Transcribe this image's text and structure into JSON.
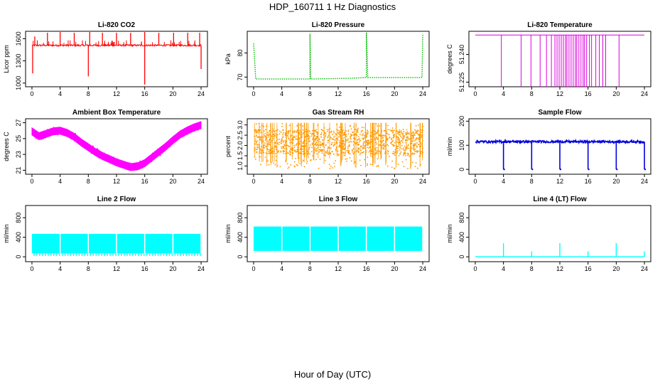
{
  "page": {
    "title": "HDP_160711  1 Hz Diagnostics",
    "xlabel": "Hour of Day (UTC)"
  },
  "chart_data": [
    {
      "type": "line",
      "title": "Li-820 CO2",
      "ylabel": "Licor ppm",
      "color": "#ff0000",
      "xlim": [
        0,
        24
      ],
      "xticks": [
        0,
        4,
        8,
        12,
        16,
        20,
        24
      ],
      "ylim": [
        950,
        1700
      ],
      "yticks": [
        1000,
        1300,
        1600
      ],
      "baseline": 1510,
      "noise": 12,
      "spikes_up": [
        [
          0.4,
          1630
        ],
        [
          2.2,
          1680
        ],
        [
          4.0,
          1690
        ],
        [
          6.0,
          1680
        ],
        [
          8.2,
          1690
        ],
        [
          10.0,
          1680
        ],
        [
          12.0,
          1680
        ],
        [
          14.0,
          1680
        ],
        [
          16.0,
          1690
        ],
        [
          18.0,
          1680
        ],
        [
          20.1,
          1680
        ],
        [
          22.1,
          1680
        ],
        [
          23.8,
          1680
        ]
      ],
      "spikes_down": [
        [
          0.1,
          1130
        ],
        [
          8.0,
          1090
        ],
        [
          16.0,
          980
        ],
        [
          24.0,
          1190
        ]
      ]
    },
    {
      "type": "line",
      "title": "Li-820 Pressure",
      "ylabel": "kPa",
      "color": "#00bb00",
      "dotted": true,
      "xlim": [
        0,
        24
      ],
      "xticks": [
        0,
        4,
        8,
        12,
        16,
        20,
        24
      ],
      "ylim": [
        66,
        89
      ],
      "yticks": [
        70,
        80
      ],
      "segments": [
        [
          0.0,
          84
        ],
        [
          0.3,
          69.2
        ],
        [
          8.0,
          69.2
        ],
        [
          8.0,
          88
        ],
        [
          8.1,
          69.2
        ],
        [
          13.5,
          69.5
        ],
        [
          16.0,
          69.8
        ],
        [
          16.0,
          88.5
        ],
        [
          16.2,
          69.8
        ],
        [
          23.9,
          69.8
        ],
        [
          24.0,
          88
        ]
      ]
    },
    {
      "type": "line",
      "title": "Li-820 Temperature",
      "ylabel": "degrees C",
      "color": "#dd00dd",
      "xlim": [
        0,
        24
      ],
      "xticks": [
        0,
        4,
        8,
        12,
        16,
        20,
        24
      ],
      "ylim": [
        51.2225,
        51.2525
      ],
      "yticks": [
        51.225,
        51.24
      ],
      "ytick_labels": [
        "51.225",
        "51.240"
      ],
      "high": 51.2505,
      "low": 51.2225,
      "drops": [
        3.7,
        6.5,
        7.9,
        9.2,
        10.1,
        10.8,
        11.3,
        11.6,
        11.9,
        12.2,
        12.5,
        12.8,
        13.0,
        13.3,
        13.6,
        13.9,
        14.2,
        14.4,
        14.7,
        15.0,
        15.3,
        15.5,
        15.8,
        16.2,
        16.5,
        17.1,
        17.6,
        18.1,
        18.5,
        20.4
      ]
    },
    {
      "type": "line",
      "title": "Ambient Box Temperature",
      "ylabel": "degrees C",
      "color": "#ff00ff",
      "xlim": [
        0,
        24
      ],
      "xticks": [
        0,
        4,
        8,
        12,
        16,
        20,
        24
      ],
      "ylim": [
        20.5,
        27.5
      ],
      "yticks": [
        21,
        23,
        25,
        27
      ],
      "x": [
        0,
        1,
        2,
        3,
        4,
        5,
        6,
        7,
        8,
        9,
        10,
        11,
        12,
        13,
        14,
        15,
        16,
        17,
        18,
        19,
        20,
        21,
        22,
        23,
        24
      ],
      "y": [
        25.9,
        25.3,
        25.6,
        25.9,
        26.0,
        25.7,
        25.2,
        24.5,
        23.9,
        23.3,
        22.8,
        22.4,
        22.0,
        21.7,
        21.4,
        21.5,
        21.9,
        22.6,
        23.3,
        24.0,
        24.8,
        25.5,
        26.0,
        26.4,
        26.7
      ],
      "band": 0.45
    },
    {
      "type": "scatter",
      "title": "Gas Stream RH",
      "ylabel": "percent",
      "color": "#ff9900",
      "xlim": [
        0,
        24
      ],
      "xticks": [
        0,
        4,
        8,
        12,
        16,
        20,
        24
      ],
      "ylim": [
        0.6,
        3.3
      ],
      "yticks": [
        1.0,
        1.5,
        2.0,
        2.5,
        3.0
      ],
      "ytick_labels": [
        "1.0",
        "1.5",
        "2.0",
        "2.5",
        "3.0"
      ],
      "range": [
        0.9,
        3.1
      ],
      "dense_range": [
        1.6,
        2.8
      ]
    },
    {
      "type": "line",
      "title": "Sample Flow",
      "ylabel": "ml/min",
      "color": "#0000dd",
      "xlim": [
        0,
        24
      ],
      "xticks": [
        0,
        4,
        8,
        12,
        16,
        20,
        24
      ],
      "ylim": [
        -20,
        210
      ],
      "yticks": [
        0,
        100,
        200
      ],
      "baseline": 115,
      "noise": 5,
      "dips": [
        4.0,
        8.0,
        12.0,
        16.0,
        20.0,
        24.0
      ],
      "dip_value": 0
    },
    {
      "type": "area",
      "title": "Line 2 Flow",
      "ylabel": "ml/min",
      "color": "#00ffff",
      "xlim": [
        0,
        24
      ],
      "xticks": [
        0,
        4,
        8,
        12,
        16,
        20,
        24
      ],
      "ylim": [
        -100,
        1050
      ],
      "yticks": [
        0,
        400,
        800
      ],
      "upper": 470,
      "lower": 70,
      "gaps": [
        4.0,
        8.0,
        12.0,
        16.0,
        20.0,
        24.0
      ]
    },
    {
      "type": "area",
      "title": "Line 3 Flow",
      "ylabel": "ml/min",
      "color": "#00ffff",
      "xlim": [
        0,
        24
      ],
      "xticks": [
        0,
        4,
        8,
        12,
        16,
        20,
        24
      ],
      "ylim": [
        -100,
        1050
      ],
      "yticks": [
        0,
        400,
        800
      ],
      "upper": 620,
      "lower": 120,
      "gaps": [
        4.0,
        8.0,
        12.0,
        16.0,
        20.0,
        24.0
      ]
    },
    {
      "type": "line",
      "title": "Line 4 (LT) Flow",
      "ylabel": "ml/min",
      "color": "#00ffff",
      "xlim": [
        0,
        24
      ],
      "xticks": [
        0,
        4,
        8,
        12,
        16,
        20,
        24
      ],
      "ylim": [
        -100,
        1050
      ],
      "yticks": [
        0,
        400,
        800
      ],
      "baseline": 0,
      "spikes": [
        [
          4.0,
          280
        ],
        [
          8.0,
          110
        ],
        [
          12.0,
          280
        ],
        [
          16.0,
          110
        ],
        [
          20.0,
          280
        ],
        [
          24.0,
          110
        ]
      ]
    }
  ]
}
